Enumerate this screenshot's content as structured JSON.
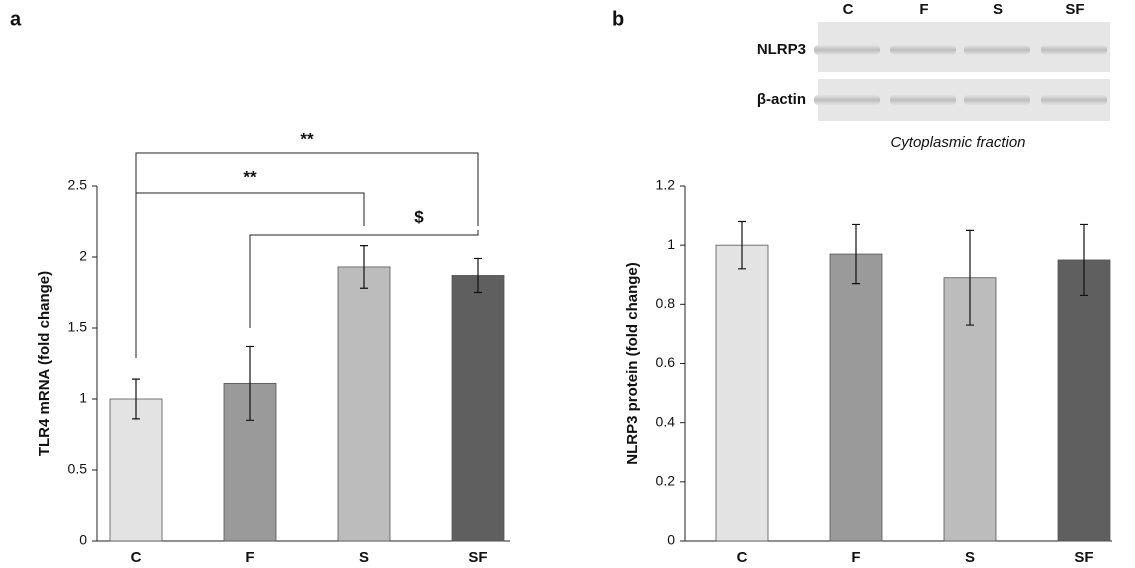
{
  "chart_data": [
    {
      "type": "bar",
      "panel": "a",
      "y_label": "TLR4 mRNA (fold change)",
      "categories": [
        "C",
        "F",
        "S",
        "SF"
      ],
      "values": [
        1.0,
        1.11,
        1.93,
        1.87
      ],
      "errors": [
        0.14,
        0.26,
        0.15,
        0.12
      ],
      "colors": [
        "#e3e3e3",
        "#9a9a9a",
        "#bcbcbc",
        "#5f5f5f"
      ],
      "ylim": [
        0,
        2.5
      ],
      "yticks": [
        0,
        0.5,
        1,
        1.5,
        2,
        2.5
      ],
      "annotations": [
        "**",
        "**",
        "$"
      ]
    },
    {
      "type": "bar",
      "panel": "b",
      "y_label": "NLRP3 protein (fold change)",
      "categories": [
        "C",
        "F",
        "S",
        "SF"
      ],
      "values": [
        1.0,
        0.97,
        0.89,
        0.95
      ],
      "errors": [
        0.08,
        0.1,
        0.16,
        0.12
      ],
      "colors": [
        "#e3e3e3",
        "#9a9a9a",
        "#bcbcbc",
        "#5f5f5f"
      ],
      "ylim": [
        0,
        1.2
      ],
      "yticks": [
        0,
        0.2,
        0.4,
        0.6,
        0.8,
        1,
        1.2
      ],
      "blot": {
        "lanes": [
          "C",
          "F",
          "S",
          "SF"
        ],
        "rows": [
          "NLRP3",
          "β-actin"
        ],
        "caption": "Cytoplasmic fraction"
      }
    }
  ]
}
